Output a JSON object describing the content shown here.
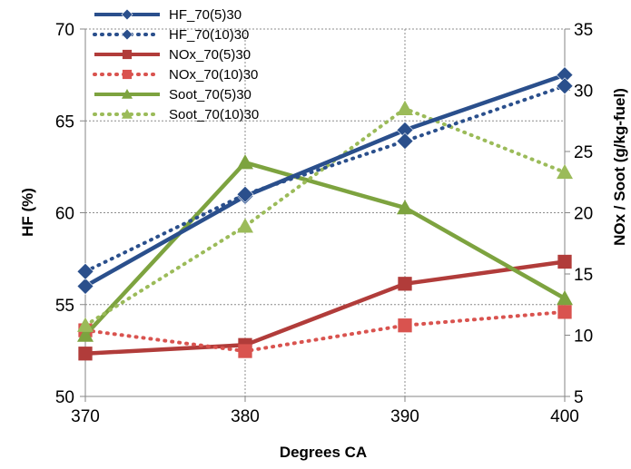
{
  "chart_data": {
    "type": "line",
    "xlabel": "Degrees CA",
    "ylabel_left": "HF (%)",
    "ylabel_right": "NOx / Soot (g/kg-fuel)",
    "x": [
      370,
      380,
      390,
      400
    ],
    "xlim": [
      370,
      400
    ],
    "y_left_lim": [
      50,
      70
    ],
    "y_right_lim": [
      5,
      35
    ],
    "x_ticks": [
      "370",
      "380",
      "390",
      "400"
    ],
    "y_left_ticks": [
      "50",
      "55",
      "60",
      "65",
      "70"
    ],
    "y_right_ticks": [
      "5",
      "10",
      "15",
      "20",
      "25",
      "30",
      "35"
    ],
    "grid": "dotted horizontal and vertical",
    "legend_position": "top-left",
    "series": [
      {
        "name": "HF_70(5)30",
        "axis": "left",
        "color": "#2A4F8C",
        "line": "solid",
        "marker": "diamond",
        "values": [
          56.0,
          60.9,
          64.5,
          67.5
        ]
      },
      {
        "name": "HF_70(10)30",
        "axis": "left",
        "color": "#2A4F8C",
        "line": "dotted",
        "marker": "diamond",
        "values": [
          56.8,
          61.0,
          63.9,
          66.9
        ]
      },
      {
        "name": "NOx_70(5)30",
        "axis": "right",
        "color": "#B13C3A",
        "line": "solid",
        "marker": "square",
        "values": [
          8.5,
          9.2,
          14.2,
          16.0
        ]
      },
      {
        "name": "NOx_70(10)30",
        "axis": "right",
        "color": "#D9534F",
        "line": "dotted",
        "marker": "square",
        "values": [
          10.4,
          8.7,
          10.8,
          11.9
        ]
      },
      {
        "name": "Soot_70(5)30",
        "axis": "right",
        "color": "#7DA33F",
        "line": "solid",
        "marker": "triangle",
        "values": [
          10.0,
          24.1,
          20.4,
          13.0
        ]
      },
      {
        "name": "Soot_70(10)30",
        "axis": "right",
        "color": "#9BBB59",
        "line": "dotted",
        "marker": "triangle",
        "values": [
          10.8,
          18.9,
          28.5,
          23.3
        ]
      }
    ]
  }
}
